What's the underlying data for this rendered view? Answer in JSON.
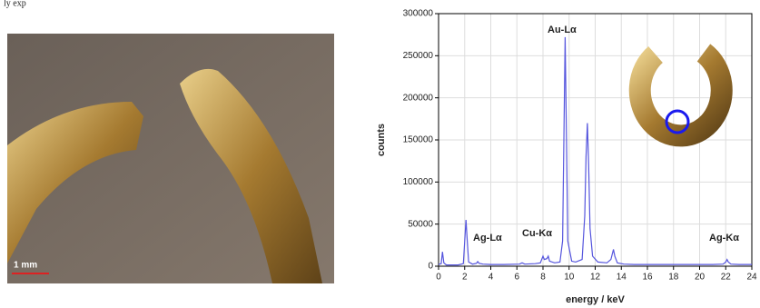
{
  "fragment": "ly exp",
  "photo": {
    "scale_label": "1 mm"
  },
  "chart_data": {
    "type": "line",
    "x_label": "energy / keV",
    "y_label": "counts",
    "annotations": [
      "Au-Lα",
      "Ag-Lα",
      "Cu-Kα",
      "Ag-Kα"
    ],
    "color": "#5555dd",
    "grid": true,
    "xlim": [
      0,
      24
    ],
    "xticks": [
      0,
      2,
      4,
      6,
      8,
      10,
      12,
      14,
      16,
      18,
      20,
      22,
      24
    ],
    "ylim": [
      0,
      300000
    ],
    "yticks": [
      0,
      50000,
      100000,
      150000,
      200000,
      250000,
      300000
    ],
    "x": [
      0,
      0.2,
      0.3,
      0.4,
      0.6,
      1.0,
      1.5,
      1.9,
      2.0,
      2.1,
      2.2,
      2.3,
      2.6,
      2.9,
      3.0,
      3.1,
      3.4,
      4.0,
      5.0,
      6.2,
      6.4,
      6.6,
      7.4,
      7.8,
      8.0,
      8.1,
      8.3,
      8.4,
      8.5,
      8.9,
      9.3,
      9.5,
      9.6,
      9.7,
      9.8,
      9.9,
      10.2,
      10.5,
      11.0,
      11.2,
      11.3,
      11.4,
      11.5,
      11.6,
      11.8,
      12.2,
      12.9,
      13.2,
      13.4,
      13.5,
      13.7,
      14.2,
      15,
      16,
      17,
      18,
      19,
      20,
      21,
      21.8,
      22.0,
      22.1,
      22.2,
      22.4,
      23,
      24
    ],
    "values": [
      2000,
      3000,
      17000,
      4000,
      1500,
      1500,
      1500,
      3000,
      30000,
      55000,
      30000,
      5000,
      2500,
      3500,
      5500,
      3500,
      2500,
      2000,
      2000,
      2500,
      4000,
      2500,
      3000,
      4000,
      12000,
      8000,
      9000,
      12000,
      6000,
      4000,
      5000,
      30000,
      150000,
      272000,
      150000,
      30000,
      6000,
      5000,
      8000,
      60000,
      130000,
      170000,
      120000,
      45000,
      12000,
      5000,
      4000,
      8000,
      20000,
      12000,
      4000,
      2500,
      2000,
      2000,
      2000,
      2000,
      2000,
      2000,
      2000,
      2500,
      5000,
      8000,
      5000,
      2500,
      2000,
      2000
    ]
  }
}
